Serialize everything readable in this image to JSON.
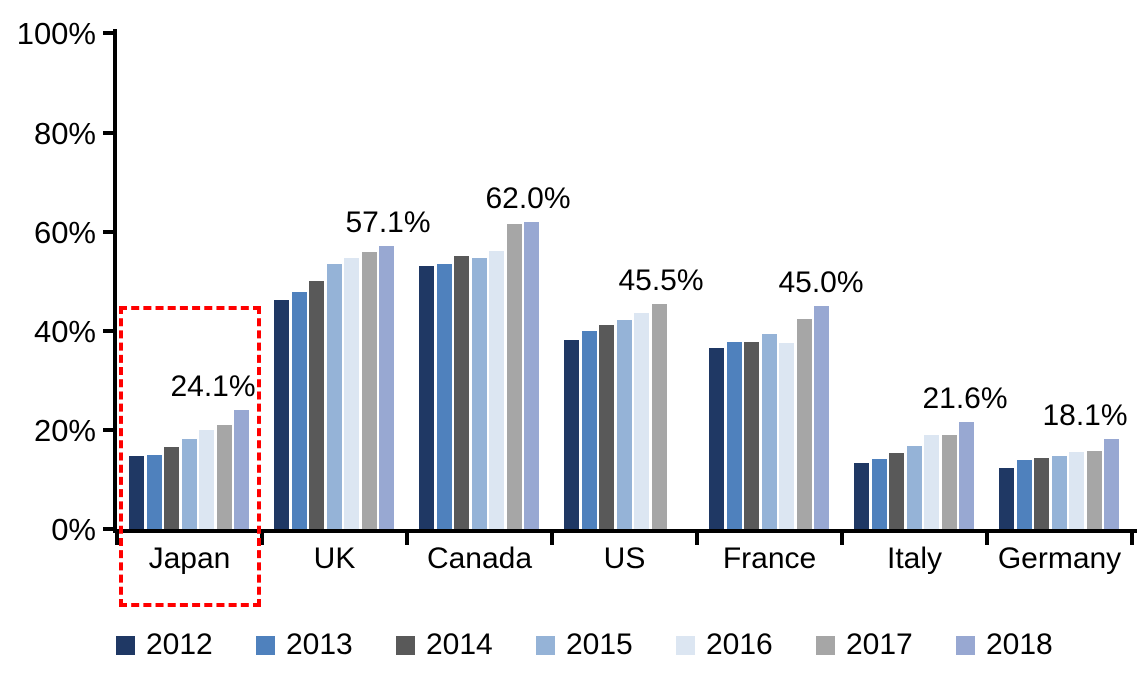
{
  "chart_data": {
    "type": "bar",
    "title": "",
    "categories": [
      "Japan",
      "UK",
      "Canada",
      "US",
      "France",
      "Italy",
      "Germany"
    ],
    "series": [
      {
        "name": "2012",
        "color": "#1F3864",
        "values": [
          14.7,
          46.3,
          53.0,
          38.2,
          36.6,
          13.3,
          12.4
        ]
      },
      {
        "name": "2013",
        "color": "#4F81BD",
        "values": [
          14.9,
          47.9,
          53.5,
          40.0,
          37.8,
          14.1,
          13.9
        ]
      },
      {
        "name": "2014",
        "color": "#595959",
        "values": [
          16.6,
          50.1,
          55.0,
          41.2,
          37.7,
          15.3,
          14.4
        ]
      },
      {
        "name": "2015",
        "color": "#95B3D7",
        "values": [
          18.1,
          53.4,
          54.6,
          42.2,
          39.4,
          16.8,
          14.8
        ]
      },
      {
        "name": "2016",
        "color": "#DCE6F2",
        "values": [
          20.0,
          54.6,
          56.2,
          43.6,
          37.5,
          18.9,
          15.5
        ]
      },
      {
        "name": "2017",
        "color": "#A6A6A6",
        "values": [
          21.0,
          55.9,
          61.5,
          45.5,
          42.3,
          19.0,
          15.7
        ]
      },
      {
        "name": "2018",
        "color": "#98A8D2",
        "values": [
          24.1,
          57.1,
          62.0,
          null,
          45.0,
          21.6,
          18.1
        ]
      }
    ],
    "data_labels": [
      {
        "category": "Japan",
        "value": 24.1,
        "text": "24.1%"
      },
      {
        "category": "UK",
        "value": 57.1,
        "text": "57.1%"
      },
      {
        "category": "Canada",
        "value": 62.0,
        "text": "62.0%"
      },
      {
        "category": "US",
        "value": 45.5,
        "text": "45.5%"
      },
      {
        "category": "France",
        "value": 45.0,
        "text": "45.0%"
      },
      {
        "category": "Italy",
        "value": 21.6,
        "text": "21.6%"
      },
      {
        "category": "Germany",
        "value": 18.1,
        "text": "18.1%"
      }
    ],
    "y_axis": {
      "min": 0,
      "max": 100,
      "tick_step": 20,
      "tick_labels": [
        "0%",
        "20%",
        "40%",
        "60%",
        "80%",
        "100%"
      ],
      "grid": "off"
    },
    "legend": {
      "position": "bottom",
      "entries": [
        "2012",
        "2013",
        "2014",
        "2015",
        "2016",
        "2017",
        "2018"
      ]
    },
    "annotation": {
      "shape": "dashed-rectangle",
      "color": "#FF0000",
      "highlights": "Japan"
    },
    "axis_color": "#000000",
    "background_color": "#FFFFFF"
  }
}
